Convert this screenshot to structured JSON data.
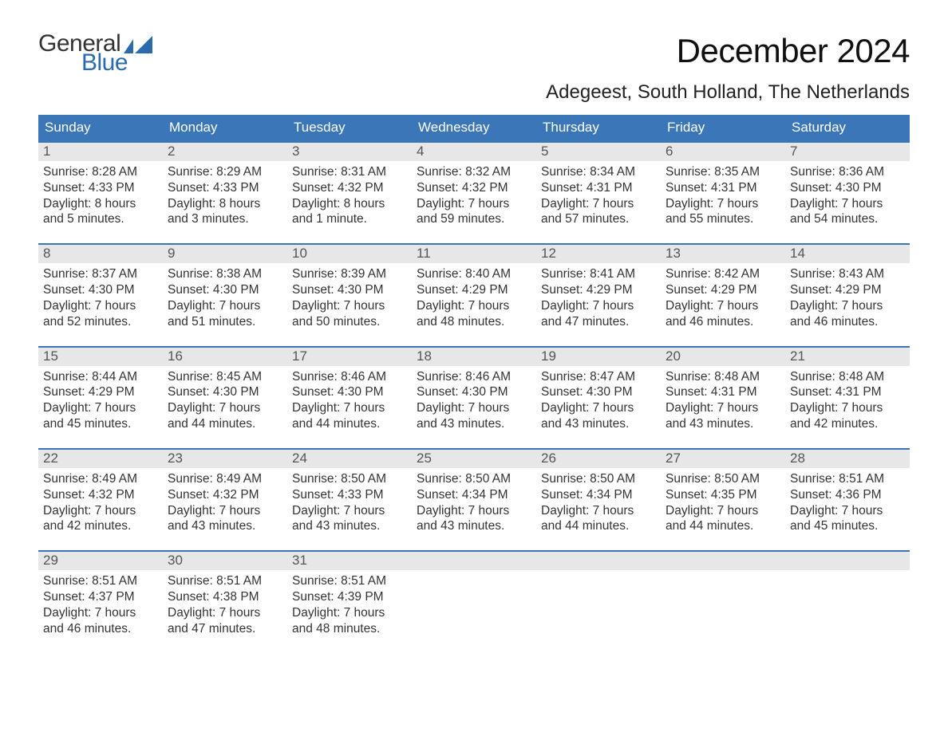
{
  "logo": {
    "text_general": "General",
    "text_blue": "Blue",
    "flag_color": "#2a6bb0",
    "general_color": "#333333",
    "blue_color": "#2a6bb0"
  },
  "title": "December 2024",
  "location": "Adegeest, South Holland, The Netherlands",
  "colors": {
    "header_bg": "#3a76b8",
    "header_text": "#ffffff",
    "daynum_bg": "#e7e7e7",
    "daynum_text": "#555555",
    "body_text": "#333333",
    "week_border": "#3a76b8",
    "page_bg": "#ffffff"
  },
  "fonts": {
    "title_size_pt": 32,
    "location_size_pt": 18,
    "weekday_size_pt": 13,
    "daynum_size_pt": 13,
    "body_size_pt": 12,
    "family": "Arial"
  },
  "weekdays": [
    "Sunday",
    "Monday",
    "Tuesday",
    "Wednesday",
    "Thursday",
    "Friday",
    "Saturday"
  ],
  "weeks": [
    [
      {
        "n": "1",
        "sunrise": "Sunrise: 8:28 AM",
        "sunset": "Sunset: 4:33 PM",
        "d1": "Daylight: 8 hours",
        "d2": "and 5 minutes."
      },
      {
        "n": "2",
        "sunrise": "Sunrise: 8:29 AM",
        "sunset": "Sunset: 4:33 PM",
        "d1": "Daylight: 8 hours",
        "d2": "and 3 minutes."
      },
      {
        "n": "3",
        "sunrise": "Sunrise: 8:31 AM",
        "sunset": "Sunset: 4:32 PM",
        "d1": "Daylight: 8 hours",
        "d2": "and 1 minute."
      },
      {
        "n": "4",
        "sunrise": "Sunrise: 8:32 AM",
        "sunset": "Sunset: 4:32 PM",
        "d1": "Daylight: 7 hours",
        "d2": "and 59 minutes."
      },
      {
        "n": "5",
        "sunrise": "Sunrise: 8:34 AM",
        "sunset": "Sunset: 4:31 PM",
        "d1": "Daylight: 7 hours",
        "d2": "and 57 minutes."
      },
      {
        "n": "6",
        "sunrise": "Sunrise: 8:35 AM",
        "sunset": "Sunset: 4:31 PM",
        "d1": "Daylight: 7 hours",
        "d2": "and 55 minutes."
      },
      {
        "n": "7",
        "sunrise": "Sunrise: 8:36 AM",
        "sunset": "Sunset: 4:30 PM",
        "d1": "Daylight: 7 hours",
        "d2": "and 54 minutes."
      }
    ],
    [
      {
        "n": "8",
        "sunrise": "Sunrise: 8:37 AM",
        "sunset": "Sunset: 4:30 PM",
        "d1": "Daylight: 7 hours",
        "d2": "and 52 minutes."
      },
      {
        "n": "9",
        "sunrise": "Sunrise: 8:38 AM",
        "sunset": "Sunset: 4:30 PM",
        "d1": "Daylight: 7 hours",
        "d2": "and 51 minutes."
      },
      {
        "n": "10",
        "sunrise": "Sunrise: 8:39 AM",
        "sunset": "Sunset: 4:30 PM",
        "d1": "Daylight: 7 hours",
        "d2": "and 50 minutes."
      },
      {
        "n": "11",
        "sunrise": "Sunrise: 8:40 AM",
        "sunset": "Sunset: 4:29 PM",
        "d1": "Daylight: 7 hours",
        "d2": "and 48 minutes."
      },
      {
        "n": "12",
        "sunrise": "Sunrise: 8:41 AM",
        "sunset": "Sunset: 4:29 PM",
        "d1": "Daylight: 7 hours",
        "d2": "and 47 minutes."
      },
      {
        "n": "13",
        "sunrise": "Sunrise: 8:42 AM",
        "sunset": "Sunset: 4:29 PM",
        "d1": "Daylight: 7 hours",
        "d2": "and 46 minutes."
      },
      {
        "n": "14",
        "sunrise": "Sunrise: 8:43 AM",
        "sunset": "Sunset: 4:29 PM",
        "d1": "Daylight: 7 hours",
        "d2": "and 46 minutes."
      }
    ],
    [
      {
        "n": "15",
        "sunrise": "Sunrise: 8:44 AM",
        "sunset": "Sunset: 4:29 PM",
        "d1": "Daylight: 7 hours",
        "d2": "and 45 minutes."
      },
      {
        "n": "16",
        "sunrise": "Sunrise: 8:45 AM",
        "sunset": "Sunset: 4:30 PM",
        "d1": "Daylight: 7 hours",
        "d2": "and 44 minutes."
      },
      {
        "n": "17",
        "sunrise": "Sunrise: 8:46 AM",
        "sunset": "Sunset: 4:30 PM",
        "d1": "Daylight: 7 hours",
        "d2": "and 44 minutes."
      },
      {
        "n": "18",
        "sunrise": "Sunrise: 8:46 AM",
        "sunset": "Sunset: 4:30 PM",
        "d1": "Daylight: 7 hours",
        "d2": "and 43 minutes."
      },
      {
        "n": "19",
        "sunrise": "Sunrise: 8:47 AM",
        "sunset": "Sunset: 4:30 PM",
        "d1": "Daylight: 7 hours",
        "d2": "and 43 minutes."
      },
      {
        "n": "20",
        "sunrise": "Sunrise: 8:48 AM",
        "sunset": "Sunset: 4:31 PM",
        "d1": "Daylight: 7 hours",
        "d2": "and 43 minutes."
      },
      {
        "n": "21",
        "sunrise": "Sunrise: 8:48 AM",
        "sunset": "Sunset: 4:31 PM",
        "d1": "Daylight: 7 hours",
        "d2": "and 42 minutes."
      }
    ],
    [
      {
        "n": "22",
        "sunrise": "Sunrise: 8:49 AM",
        "sunset": "Sunset: 4:32 PM",
        "d1": "Daylight: 7 hours",
        "d2": "and 42 minutes."
      },
      {
        "n": "23",
        "sunrise": "Sunrise: 8:49 AM",
        "sunset": "Sunset: 4:32 PM",
        "d1": "Daylight: 7 hours",
        "d2": "and 43 minutes."
      },
      {
        "n": "24",
        "sunrise": "Sunrise: 8:50 AM",
        "sunset": "Sunset: 4:33 PM",
        "d1": "Daylight: 7 hours",
        "d2": "and 43 minutes."
      },
      {
        "n": "25",
        "sunrise": "Sunrise: 8:50 AM",
        "sunset": "Sunset: 4:34 PM",
        "d1": "Daylight: 7 hours",
        "d2": "and 43 minutes."
      },
      {
        "n": "26",
        "sunrise": "Sunrise: 8:50 AM",
        "sunset": "Sunset: 4:34 PM",
        "d1": "Daylight: 7 hours",
        "d2": "and 44 minutes."
      },
      {
        "n": "27",
        "sunrise": "Sunrise: 8:50 AM",
        "sunset": "Sunset: 4:35 PM",
        "d1": "Daylight: 7 hours",
        "d2": "and 44 minutes."
      },
      {
        "n": "28",
        "sunrise": "Sunrise: 8:51 AM",
        "sunset": "Sunset: 4:36 PM",
        "d1": "Daylight: 7 hours",
        "d2": "and 45 minutes."
      }
    ],
    [
      {
        "n": "29",
        "sunrise": "Sunrise: 8:51 AM",
        "sunset": "Sunset: 4:37 PM",
        "d1": "Daylight: 7 hours",
        "d2": "and 46 minutes."
      },
      {
        "n": "30",
        "sunrise": "Sunrise: 8:51 AM",
        "sunset": "Sunset: 4:38 PM",
        "d1": "Daylight: 7 hours",
        "d2": "and 47 minutes."
      },
      {
        "n": "31",
        "sunrise": "Sunrise: 8:51 AM",
        "sunset": "Sunset: 4:39 PM",
        "d1": "Daylight: 7 hours",
        "d2": "and 48 minutes."
      },
      {
        "empty": true
      },
      {
        "empty": true
      },
      {
        "empty": true
      },
      {
        "empty": true
      }
    ]
  ]
}
